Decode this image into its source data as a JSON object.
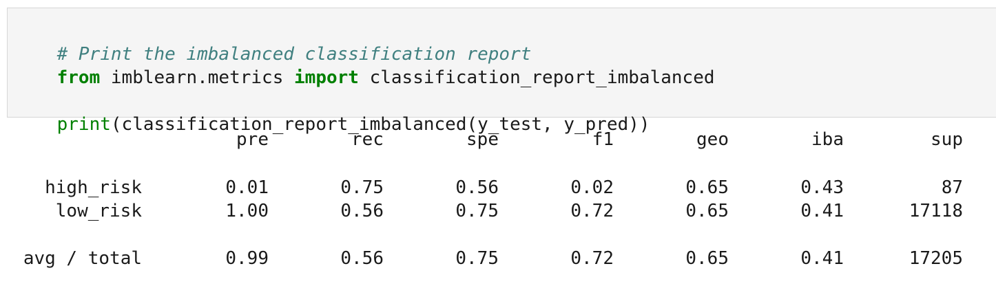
{
  "input_cell": {
    "comment": "# Print the imbalanced classification report",
    "line2": {
      "kw_from": "from",
      "module": " imblearn.metrics ",
      "kw_import": "import",
      "name": " classification_report_imbalanced"
    },
    "line4": {
      "func": "print",
      "args": "(classification_report_imbalanced(y_test, y_pred))"
    }
  },
  "report": {
    "headers": [
      "pre",
      "rec",
      "spe",
      "f1",
      "geo",
      "iba",
      "sup"
    ],
    "rows": [
      {
        "label": "high_risk",
        "values": [
          "0.01",
          "0.75",
          "0.56",
          "0.02",
          "0.65",
          "0.43",
          "87"
        ]
      },
      {
        "label": "low_risk",
        "values": [
          "1.00",
          "0.56",
          "0.75",
          "0.72",
          "0.65",
          "0.41",
          "17118"
        ]
      },
      {
        "label": "avg / total",
        "values": [
          "0.99",
          "0.56",
          "0.75",
          "0.72",
          "0.65",
          "0.41",
          "17205"
        ]
      }
    ]
  }
}
